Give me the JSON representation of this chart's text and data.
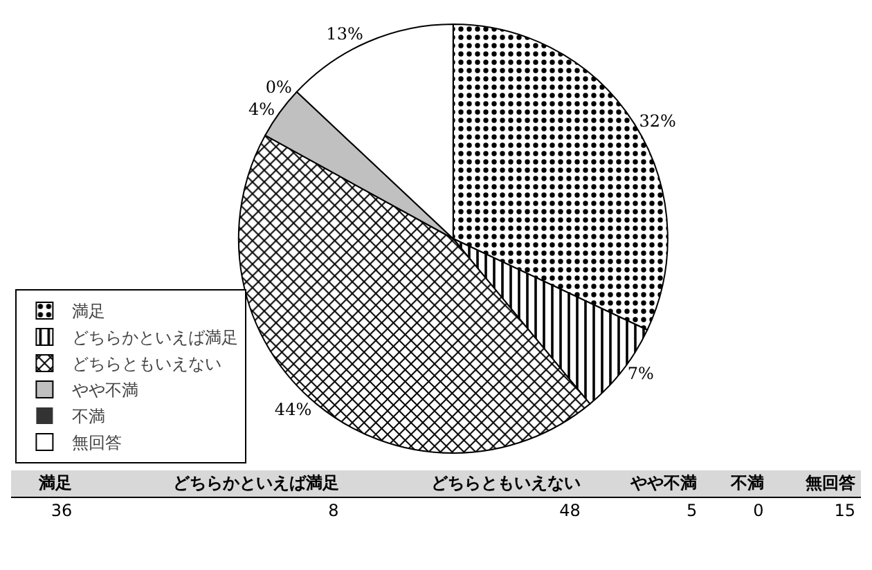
{
  "chart_data": [
    {
      "type": "pie",
      "categories": [
        "満足",
        "どちらかといえば満足",
        "どちらともいえない",
        "やや不満",
        "不満",
        "無回答"
      ],
      "values": [
        32,
        7,
        44,
        4,
        0,
        13
      ],
      "value_labels": [
        "32%",
        "7%",
        "44%",
        "4%",
        "0%",
        "13%"
      ],
      "colors": [
        "#000000",
        "#000000",
        "#000000",
        "#c0c0c0",
        "#333333",
        "#ffffff"
      ],
      "legend": "bottom left"
    },
    {
      "type": "other",
      "categories": [
        "満足",
        "どちらかといえば満足",
        "どちらともいえない",
        "やや不満",
        "不満",
        "無回答"
      ],
      "values": [
        36,
        8,
        48,
        5,
        0,
        15
      ],
      "data_labels": true
    }
  ]
}
